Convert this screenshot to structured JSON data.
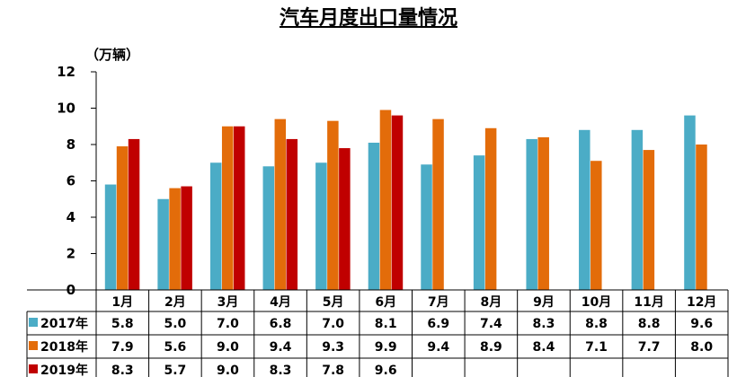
{
  "chart_data": {
    "type": "bar",
    "title": "汽车月度出口量情况",
    "ylabel": "（万辆）",
    "ylim": [
      0,
      12
    ],
    "yticks": [
      "0",
      "2",
      "4",
      "6",
      "8",
      "10",
      "12"
    ],
    "categories": [
      "1月",
      "2月",
      "3月",
      "4月",
      "5月",
      "6月",
      "7月",
      "8月",
      "9月",
      "10月",
      "11月",
      "12月"
    ],
    "series": [
      {
        "name": "2017年",
        "color": "#4bacc6",
        "values": [
          5.8,
          5.0,
          7.0,
          6.8,
          7.0,
          8.1,
          6.9,
          7.4,
          8.3,
          8.8,
          8.8,
          9.6
        ],
        "labels": [
          "5.8",
          "5.0",
          "7.0",
          "6.8",
          "7.0",
          "8.1",
          "6.9",
          "7.4",
          "8.3",
          "8.8",
          "8.8",
          "9.6"
        ]
      },
      {
        "name": "2018年",
        "color": "#e36c0a",
        "values": [
          7.9,
          5.6,
          9.0,
          9.4,
          9.3,
          9.9,
          9.4,
          8.9,
          8.4,
          7.1,
          7.7,
          8.0
        ],
        "labels": [
          "7.9",
          "5.6",
          "9.0",
          "9.4",
          "9.3",
          "9.9",
          "9.4",
          "8.9",
          "8.4",
          "7.1",
          "7.7",
          "8.0"
        ]
      },
      {
        "name": "2019年",
        "color": "#c00000",
        "values": [
          8.3,
          5.7,
          9.0,
          8.3,
          7.8,
          9.6,
          null,
          null,
          null,
          null,
          null,
          null
        ],
        "labels": [
          "8.3",
          "5.7",
          "9.0",
          "8.3",
          "7.8",
          "9.6",
          "",
          "",
          "",
          "",
          "",
          ""
        ]
      }
    ],
    "grid": false,
    "legend": "data-table"
  }
}
